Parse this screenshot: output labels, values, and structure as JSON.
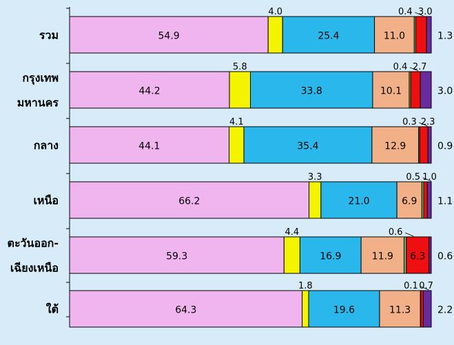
{
  "chart_data": {
    "type": "bar",
    "stacked": true,
    "orientation": "horizontal",
    "categories": [
      [
        "รวม"
      ],
      [
        "กรุงเทพ",
        "มหานคร"
      ],
      [
        "กลาง"
      ],
      [
        "เหนือ"
      ],
      [
        "ตะวันออก-",
        "เฉียงเหนือ"
      ],
      [
        "ใต้"
      ]
    ],
    "series": [
      {
        "values": [
          54.9,
          44.2,
          44.1,
          66.2,
          59.3,
          64.3
        ],
        "color": "#f0b4ee"
      },
      {
        "values": [
          4.0,
          5.8,
          4.1,
          3.3,
          4.4,
          1.8
        ],
        "color": "#f4f400"
      },
      {
        "values": [
          25.4,
          33.8,
          35.4,
          21.0,
          16.9,
          19.6
        ],
        "color": "#2ab8ec"
      },
      {
        "values": [
          11.0,
          10.1,
          12.9,
          6.9,
          11.9,
          11.3
        ],
        "color": "#f2b088"
      },
      {
        "values": [
          0.4,
          0.4,
          0.3,
          0.5,
          0.6,
          0.1
        ],
        "color": "#7ac74c"
      },
      {
        "values": [
          3.0,
          2.7,
          2.3,
          1.0,
          6.3,
          0.7
        ],
        "color": "#ee1010"
      },
      {
        "values": [
          1.3,
          3.0,
          0.9,
          1.1,
          0.6,
          2.2
        ],
        "color": "#6a2aa0"
      }
    ],
    "xlim": [
      0,
      100
    ],
    "grid": false,
    "legend": "none"
  }
}
